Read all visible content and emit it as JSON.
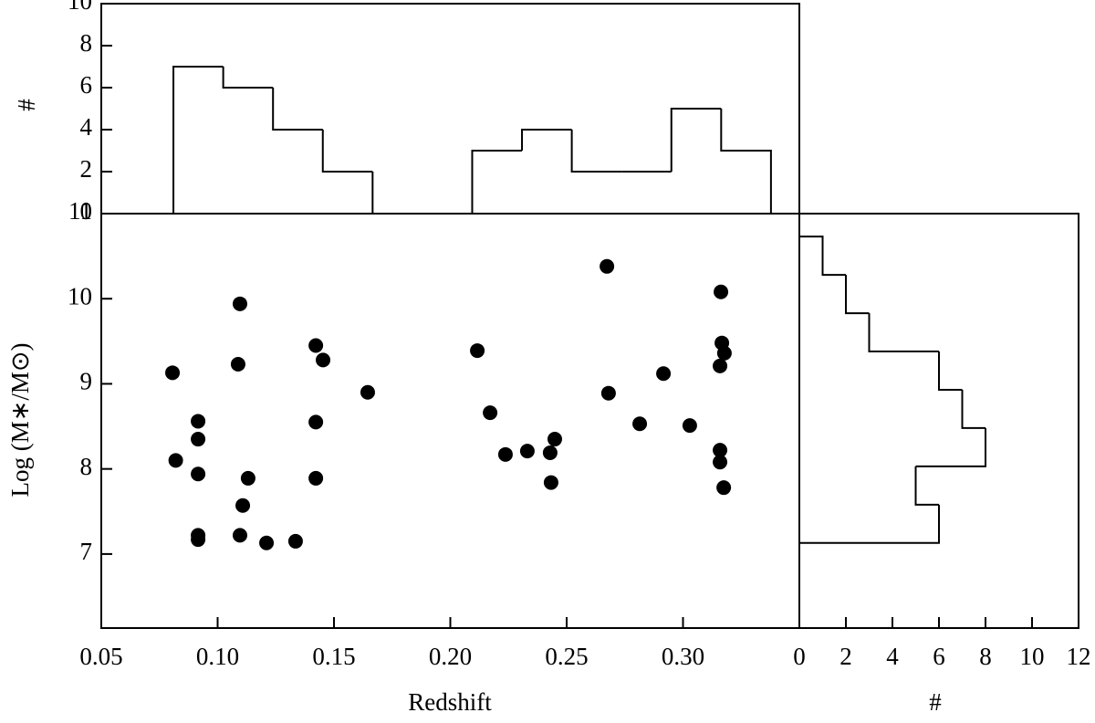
{
  "chart_data": [
    {
      "type": "histogram",
      "orientation": "vertical",
      "ylabel": "#",
      "bins": [
        0.081,
        0.1024,
        0.1238,
        0.1452,
        0.1666,
        0.188,
        0.2094,
        0.2308,
        0.2522,
        0.2736,
        0.295,
        0.3164,
        0.3378
      ],
      "values": [
        7,
        6,
        4,
        2,
        0,
        0,
        3,
        4,
        2,
        2,
        5,
        3
      ],
      "color": "#000000",
      "xlim": [
        0.05,
        0.35
      ],
      "ylim": [
        0,
        10
      ],
      "yticks": [
        0,
        2,
        4,
        6,
        8,
        10
      ]
    },
    {
      "type": "scatter",
      "xlabel": "Redshift",
      "ylabel": "Log (M∗/M⊙)",
      "x": [
        0.0806,
        0.082,
        0.0916,
        0.0916,
        0.0916,
        0.0916,
        0.0916,
        0.1096,
        0.1088,
        0.1108,
        0.1131,
        0.1096,
        0.121,
        0.1335,
        0.1422,
        0.1453,
        0.1422,
        0.1422,
        0.1645,
        0.2116,
        0.2171,
        0.2237,
        0.2331,
        0.2429,
        0.2449,
        0.2433,
        0.2673,
        0.268,
        0.2814,
        0.2916,
        0.3029,
        0.3163,
        0.3167,
        0.3178,
        0.3159,
        0.3159,
        0.3159,
        0.3175
      ],
      "values": [
        9.13,
        8.1,
        8.56,
        8.35,
        7.94,
        7.22,
        7.17,
        9.94,
        9.23,
        7.57,
        7.89,
        7.22,
        7.13,
        7.15,
        9.45,
        9.28,
        8.55,
        7.89,
        8.9,
        9.39,
        8.66,
        8.17,
        8.21,
        8.19,
        8.35,
        7.84,
        10.38,
        8.89,
        8.53,
        9.12,
        8.51,
        10.08,
        9.48,
        9.36,
        9.21,
        8.22,
        8.08,
        7.78
      ],
      "color": "#000000",
      "xlim": [
        0.05,
        0.35
      ],
      "ylim": [
        6.13,
        11
      ],
      "xticks": [
        0.05,
        {
          "value": 0.1,
          "label": "0.10"
        },
        0.15,
        {
          "value": 0.2,
          "label": "0.20"
        },
        0.25,
        {
          "value": 0.3,
          "label": "0.30"
        }
      ],
      "yticks": [
        7,
        8,
        9,
        10,
        11
      ]
    },
    {
      "type": "histogram",
      "orientation": "horizontal",
      "xlabel": "#",
      "bins": [
        7.13,
        7.58,
        8.03,
        8.48,
        8.93,
        9.38,
        9.83,
        10.28,
        10.73
      ],
      "values": [
        6,
        5,
        8,
        7,
        6,
        3,
        2,
        1
      ],
      "color": "#000000",
      "xlim": [
        0,
        12
      ],
      "ylim": [
        6.13,
        11
      ],
      "xticks": [
        0,
        2,
        4,
        6,
        8,
        10,
        12
      ]
    }
  ]
}
